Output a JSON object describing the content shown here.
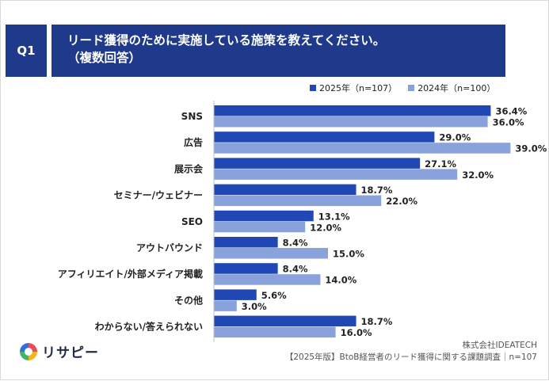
{
  "question": {
    "badge": "Q1",
    "title_line1": "リード獲得のために実施している施策を教えてください。",
    "title_line2": "（複数回答）"
  },
  "colors": {
    "header_bg": "#1f3a8a",
    "series_2025": "#1f48b5",
    "series_2024": "#8aa2dc"
  },
  "chart_data": {
    "type": "bar",
    "orientation": "horizontal",
    "categories": [
      "SNS",
      "広告",
      "展示会",
      "セミナー/ウェビナー",
      "SEO",
      "アウトバウンド",
      "アフィリエイト/外部メディア掲載",
      "その他",
      "わからない/答えられない"
    ],
    "series": [
      {
        "name": "2025年（n=107）",
        "values": [
          36.4,
          29.0,
          27.1,
          18.7,
          13.1,
          8.4,
          8.4,
          5.6,
          18.7
        ]
      },
      {
        "name": "2024年（n=100）",
        "values": [
          36.0,
          39.0,
          32.0,
          22.0,
          12.0,
          15.0,
          14.0,
          3.0,
          16.0
        ]
      }
    ],
    "value_suffix": "%",
    "xlim": [
      0,
      40
    ],
    "legend": "top-right",
    "grid": false
  },
  "logo": {
    "text": "リサピー"
  },
  "footer": {
    "company": "株式会社IDEATECH",
    "survey": "【2025年版】BtoB経営者のリード獲得に関する課題調査｜n=107"
  }
}
